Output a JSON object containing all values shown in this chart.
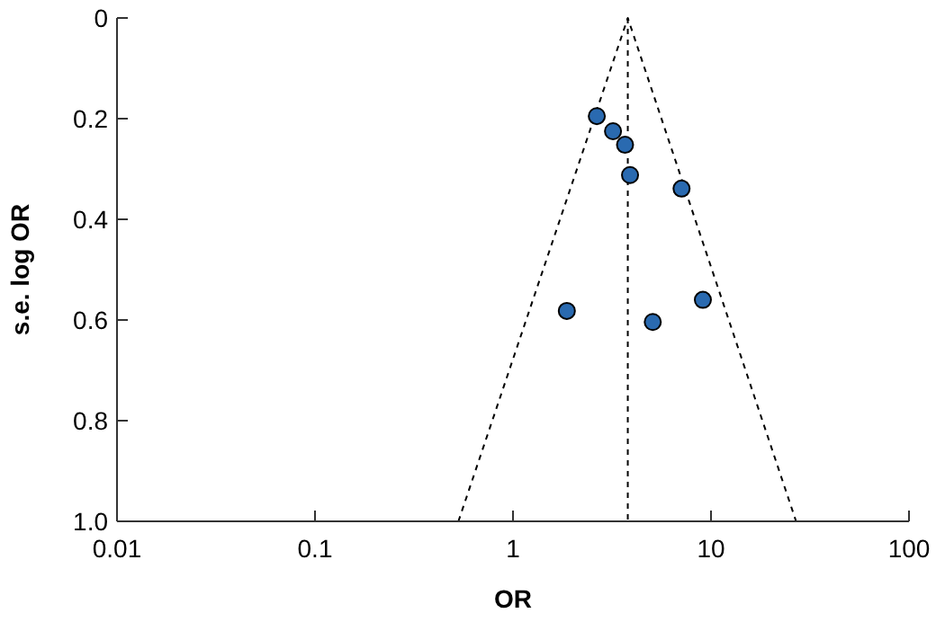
{
  "chart_data": {
    "type": "scatter",
    "xlabel": "OR",
    "ylabel": "s.e. log OR",
    "log": "x",
    "xlim": [
      0.01,
      100
    ],
    "xticks": [
      0.01,
      0.1,
      1,
      10,
      100
    ],
    "ylim": [
      1.0,
      0
    ],
    "yticks": [
      {
        "value": 0,
        "label": "0"
      },
      {
        "value": 0.2,
        "label": "0.2"
      },
      {
        "value": 0.4,
        "label": "0.4"
      },
      {
        "value": 0.6,
        "label": "0.6"
      },
      {
        "value": 0.8,
        "label": "0.8"
      },
      {
        "value": 1.0,
        "label": "1.0"
      }
    ],
    "grid": false,
    "marker": "circle",
    "series": [
      {
        "color": "#2a6ab0",
        "x": [
          2.65,
          3.2,
          3.68,
          3.9,
          7.1,
          1.87,
          5.08,
          9.1
        ],
        "values": [
          0.195,
          0.225,
          0.252,
          0.312,
          0.339,
          0.582,
          0.604,
          0.56
        ]
      },
      {
        "type": "line",
        "color": "#000000",
        "line_style": "dashed",
        "marker": "none",
        "x": [
          0.53,
          3.8,
          26.9
        ],
        "values": [
          1.0,
          0,
          1.0
        ]
      }
    ],
    "ref_lines": [
      {
        "axis": "x",
        "value": 3.8,
        "label": null,
        "color": "#000000",
        "line_style": "dashed"
      }
    ]
  }
}
